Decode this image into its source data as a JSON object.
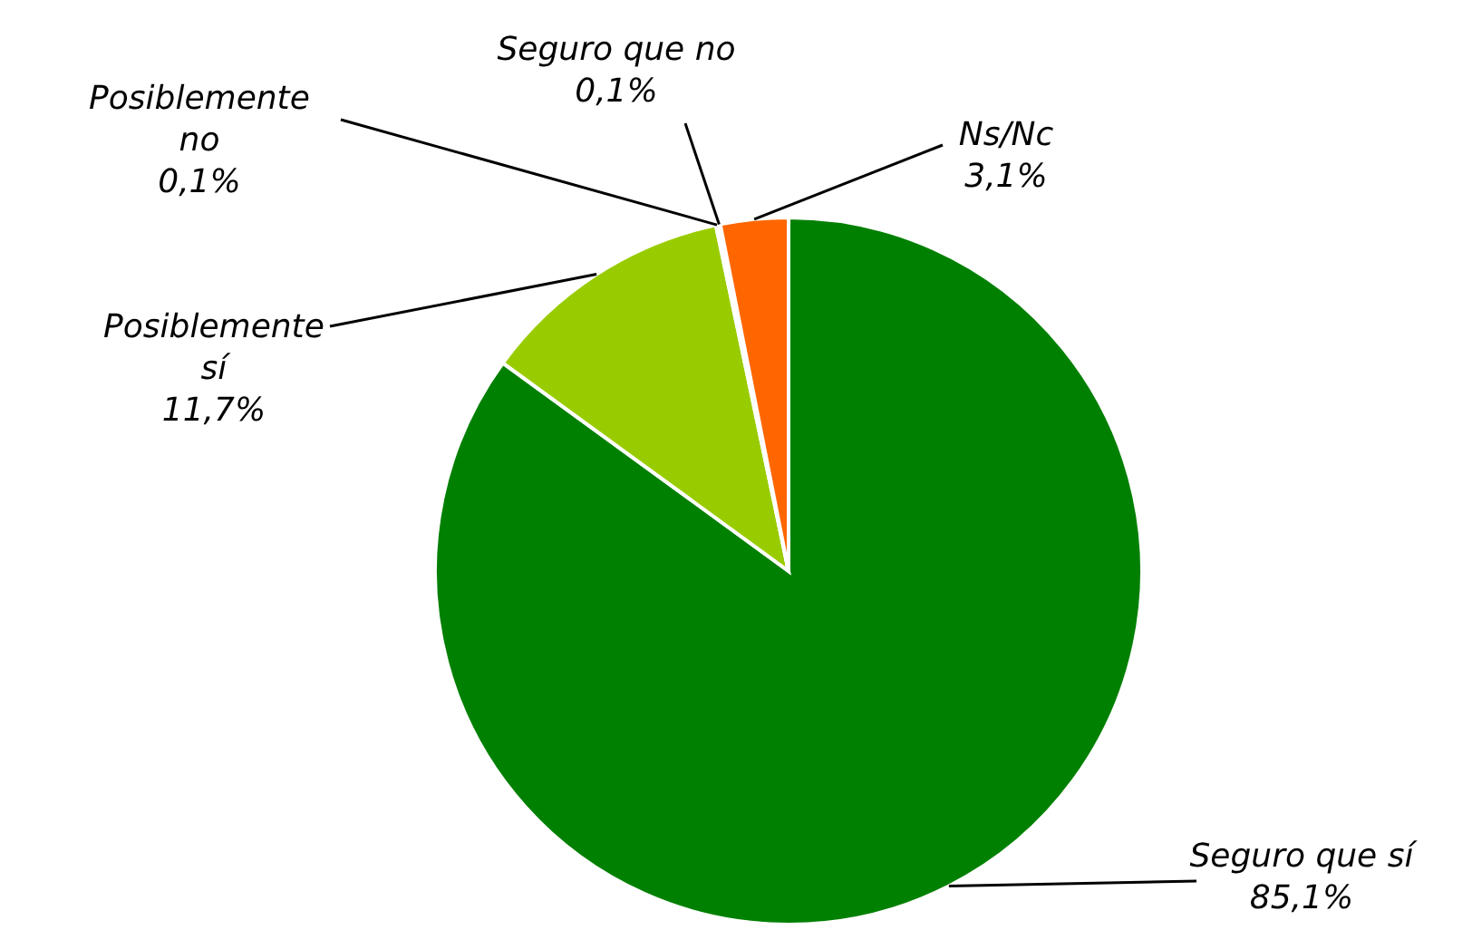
{
  "chart_data": {
    "type": "pie",
    "categories": [
      "Seguro que sí",
      "Posiblemente sí",
      "Posiblemente no",
      "Seguro que no",
      "Ns/Nc"
    ],
    "values": [
      85.1,
      11.7,
      0.1,
      0.1,
      3.1
    ],
    "value_labels": [
      "85,1%",
      "11,7%",
      "0,1%",
      "0,1%",
      "3,1%"
    ],
    "colors": [
      "#008000",
      "#99cc00",
      "#ffcc00",
      "#ff0000",
      "#ff6600"
    ],
    "legend": false
  }
}
